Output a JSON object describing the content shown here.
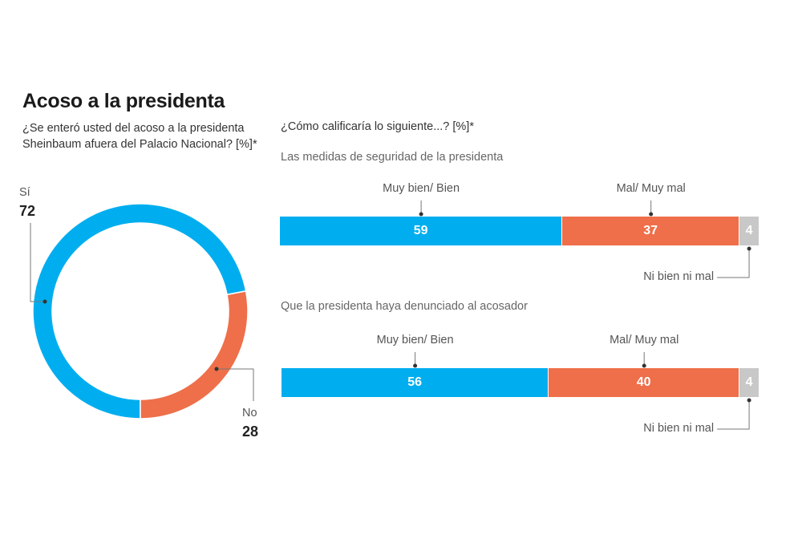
{
  "header": {
    "title": "Acoso a la presidenta"
  },
  "colors": {
    "positive": "#00AEEF",
    "negative": "#EE6F4A",
    "neutral": "#C8C8C8",
    "leader": "#777777"
  },
  "chart_data": [
    {
      "type": "pie",
      "subtitle": "¿Se enteró usted del acoso a la presidenta Sheinbaum afuera del Palacio Nacional? [%]*",
      "slices": [
        {
          "label": "Sí",
          "value": 72,
          "color": "#00AEEF"
        },
        {
          "label": "No",
          "value": 28,
          "color": "#EE6F4A"
        }
      ]
    },
    {
      "type": "bar",
      "orientation": "horizontal-stacked",
      "subtitle": "¿Cómo calificaría lo siguiente...? [%]*",
      "categories": [
        "Las medidas de seguridad de la presidenta",
        "Que la presidenta haya denunciado al acosador"
      ],
      "series": [
        {
          "name": "Muy bien/ Bien",
          "values": [
            59,
            56
          ],
          "color": "#00AEEF"
        },
        {
          "name": "Mal/ Muy mal",
          "values": [
            37,
            40
          ],
          "color": "#EE6F4A"
        },
        {
          "name": "Ni bien ni mal",
          "values": [
            4,
            4
          ],
          "color": "#C8C8C8"
        }
      ]
    }
  ]
}
